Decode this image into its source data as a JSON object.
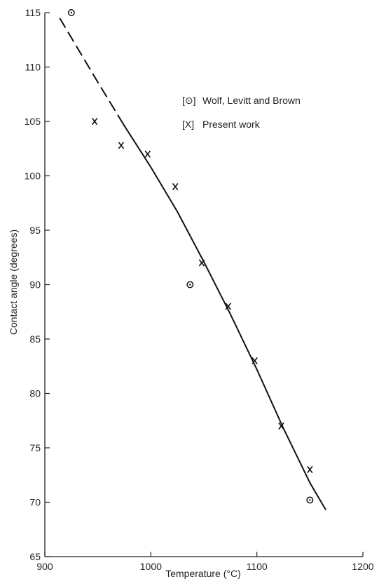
{
  "chart_data": {
    "type": "scatter",
    "title": "",
    "xlabel": "Temperature (°C)",
    "ylabel": "Contact angle (degrees)",
    "xlim": [
      900,
      1200
    ],
    "ylim": [
      65,
      115
    ],
    "xticks": [
      900,
      1000,
      1100,
      1200
    ],
    "yticks": [
      65,
      70,
      75,
      80,
      85,
      90,
      95,
      100,
      105,
      110,
      115
    ],
    "grid": false,
    "legend_position": "top-right",
    "series": [
      {
        "name": "Wolf, Levitt and Brown",
        "marker": "circle-dot",
        "x": [
          925,
          1037,
          1150
        ],
        "y": [
          115,
          90,
          70.2
        ]
      },
      {
        "name": "Present work",
        "marker": "x",
        "x": [
          947,
          972,
          997,
          1023,
          1048,
          1073,
          1098,
          1123,
          1150
        ],
        "y": [
          105,
          102.8,
          102,
          99,
          92,
          88,
          83,
          77,
          73
        ]
      }
    ],
    "fit_line": {
      "x": [
        914,
        950,
        975,
        1000,
        1025,
        1050,
        1075,
        1100,
        1125,
        1150,
        1165
      ],
      "y": [
        114.5,
        108.6,
        104.6,
        100.8,
        96.7,
        92.1,
        87.3,
        82.2,
        76.8,
        71.8,
        69.3
      ],
      "dashed_until_x": 972
    },
    "legend_marks": [
      "[⊙]",
      "[X]"
    ]
  }
}
